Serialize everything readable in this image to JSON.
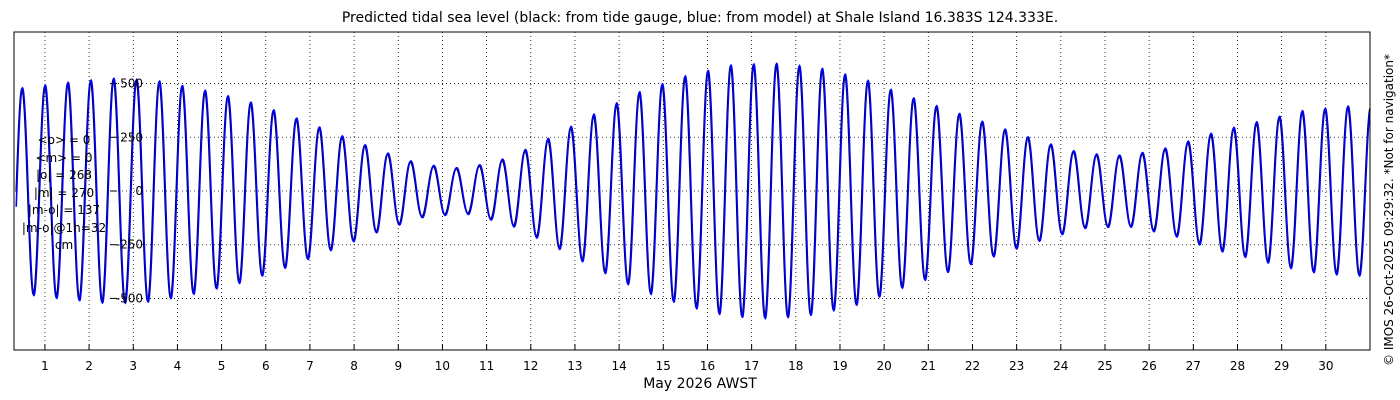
{
  "chart_data": {
    "type": "line",
    "title": "Predicted tidal sea level (black: from tide gauge, blue: from model) at Shale Island 16.383S 124.333E.",
    "xlabel": "May 2026 AWST",
    "ylabel": "",
    "units": "cm",
    "xlim": [
      0.3,
      31
    ],
    "ylim": [
      -740,
      740
    ],
    "x_ticks": [
      1,
      2,
      3,
      4,
      5,
      6,
      7,
      8,
      9,
      10,
      11,
      12,
      13,
      14,
      15,
      16,
      17,
      18,
      19,
      20,
      21,
      22,
      23,
      24,
      25,
      26,
      27,
      28,
      29,
      30
    ],
    "x_tick_labels": [
      "1",
      "2",
      "3",
      "4",
      "5",
      "6",
      "7",
      "8",
      "9",
      "10",
      "11",
      "12",
      "13",
      "14",
      "15",
      "16",
      "17",
      "18",
      "19",
      "20",
      "21",
      "22",
      "23",
      "24",
      "25",
      "26",
      "27",
      "28",
      "29",
      "30"
    ],
    "y_ticks": [
      -500,
      -250,
      0,
      250,
      500
    ],
    "y_tick_labels": [
      "-500",
      "-250",
      "0",
      "250",
      "500"
    ],
    "grid": true,
    "series": [
      {
        "name": "from tide gauge",
        "color": "#000000",
        "x": [
          0.5,
          1.5,
          2.5,
          3.5,
          4.5,
          5.5,
          6.5,
          7.5,
          8.5,
          9.5,
          10.5,
          11.5,
          12.5,
          13.5,
          14.5,
          15.5,
          16.5,
          17.5,
          18.5,
          19.5,
          20.5,
          21.5,
          22.5,
          23.5,
          24.5,
          25.5,
          26.5,
          27.5,
          28.5,
          29.5,
          30.5
        ],
        "amplitude": [
          475,
          500,
          520,
          510,
          470,
          420,
          350,
          270,
          190,
          120,
          100,
          150,
          250,
          360,
          460,
          530,
          580,
          590,
          570,
          520,
          440,
          370,
          300,
          230,
          170,
          160,
          200,
          270,
          320,
          370,
          390
        ]
      },
      {
        "name": "from model",
        "color": "#0000ff",
        "x": [
          0.5,
          1.5,
          2.5,
          3.5,
          4.5,
          5.5,
          6.5,
          7.5,
          8.5,
          9.5,
          10.5,
          11.5,
          12.5,
          13.5,
          14.5,
          15.5,
          16.5,
          17.5,
          18.5,
          19.5,
          20.5,
          21.5,
          22.5,
          23.5,
          24.5,
          25.5,
          26.5,
          27.5,
          28.5,
          29.5,
          30.5
        ],
        "amplitude": [
          480,
          505,
          525,
          515,
          475,
          425,
          355,
          275,
          195,
          125,
          105,
          155,
          255,
          365,
          465,
          535,
          585,
          595,
          575,
          525,
          445,
          375,
          305,
          235,
          175,
          165,
          205,
          275,
          325,
          375,
          395
        ]
      }
    ]
  },
  "stats": {
    "mean_obs": "<o> = 0",
    "mean_model": "<m> = 0",
    "abs_obs": "|o| = 268",
    "abs_model": "|m| = 270",
    "abs_diff": "|m-o| = 137",
    "abs_diff_1h": "|m-o|@1h=32",
    "units": "cm"
  },
  "copyright": "© IMOS 26-Oct-2025 09:29:32. *Not for navigation*"
}
